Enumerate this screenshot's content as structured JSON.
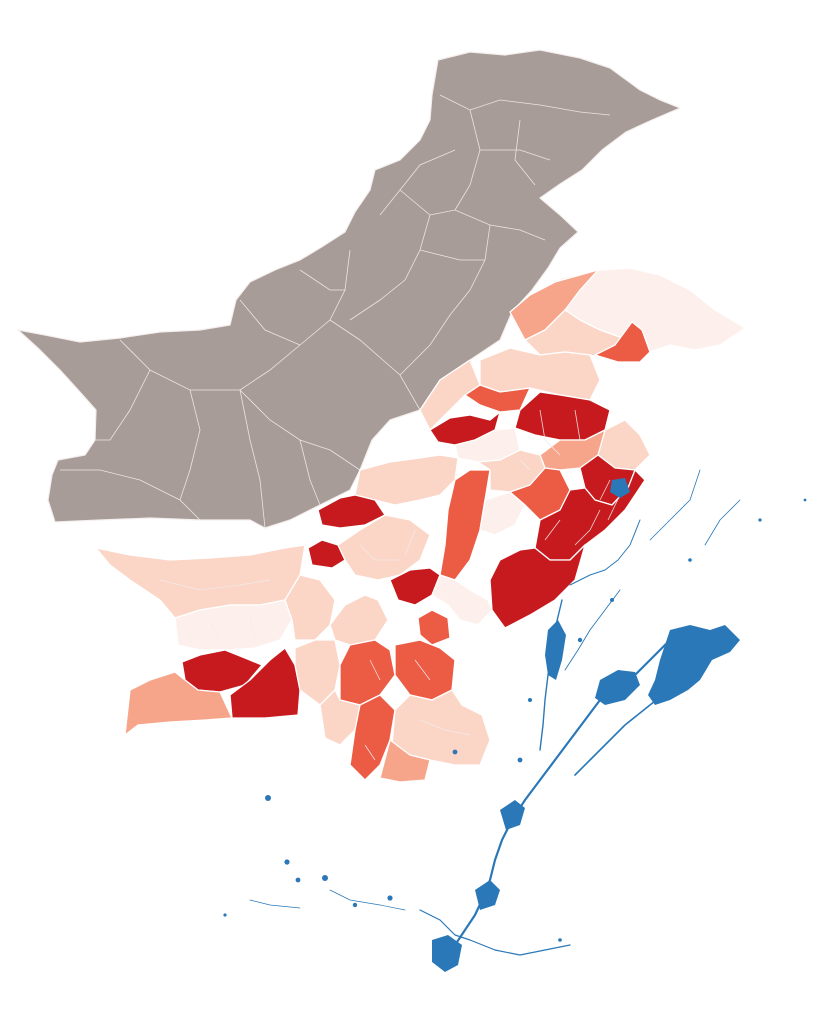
{
  "map": {
    "title": "",
    "colors": {
      "unaffected_region": "#a89c98",
      "severity_0": "#fdf0ec",
      "severity_1": "#fbd5c6",
      "severity_2": "#f6a58a",
      "severity_3": "#ec5b44",
      "severity_4": "#c71a1e",
      "flood_water": "#2a78b8"
    },
    "layers": [
      "district-boundaries",
      "severity-choropleth",
      "flood-extent"
    ]
  }
}
